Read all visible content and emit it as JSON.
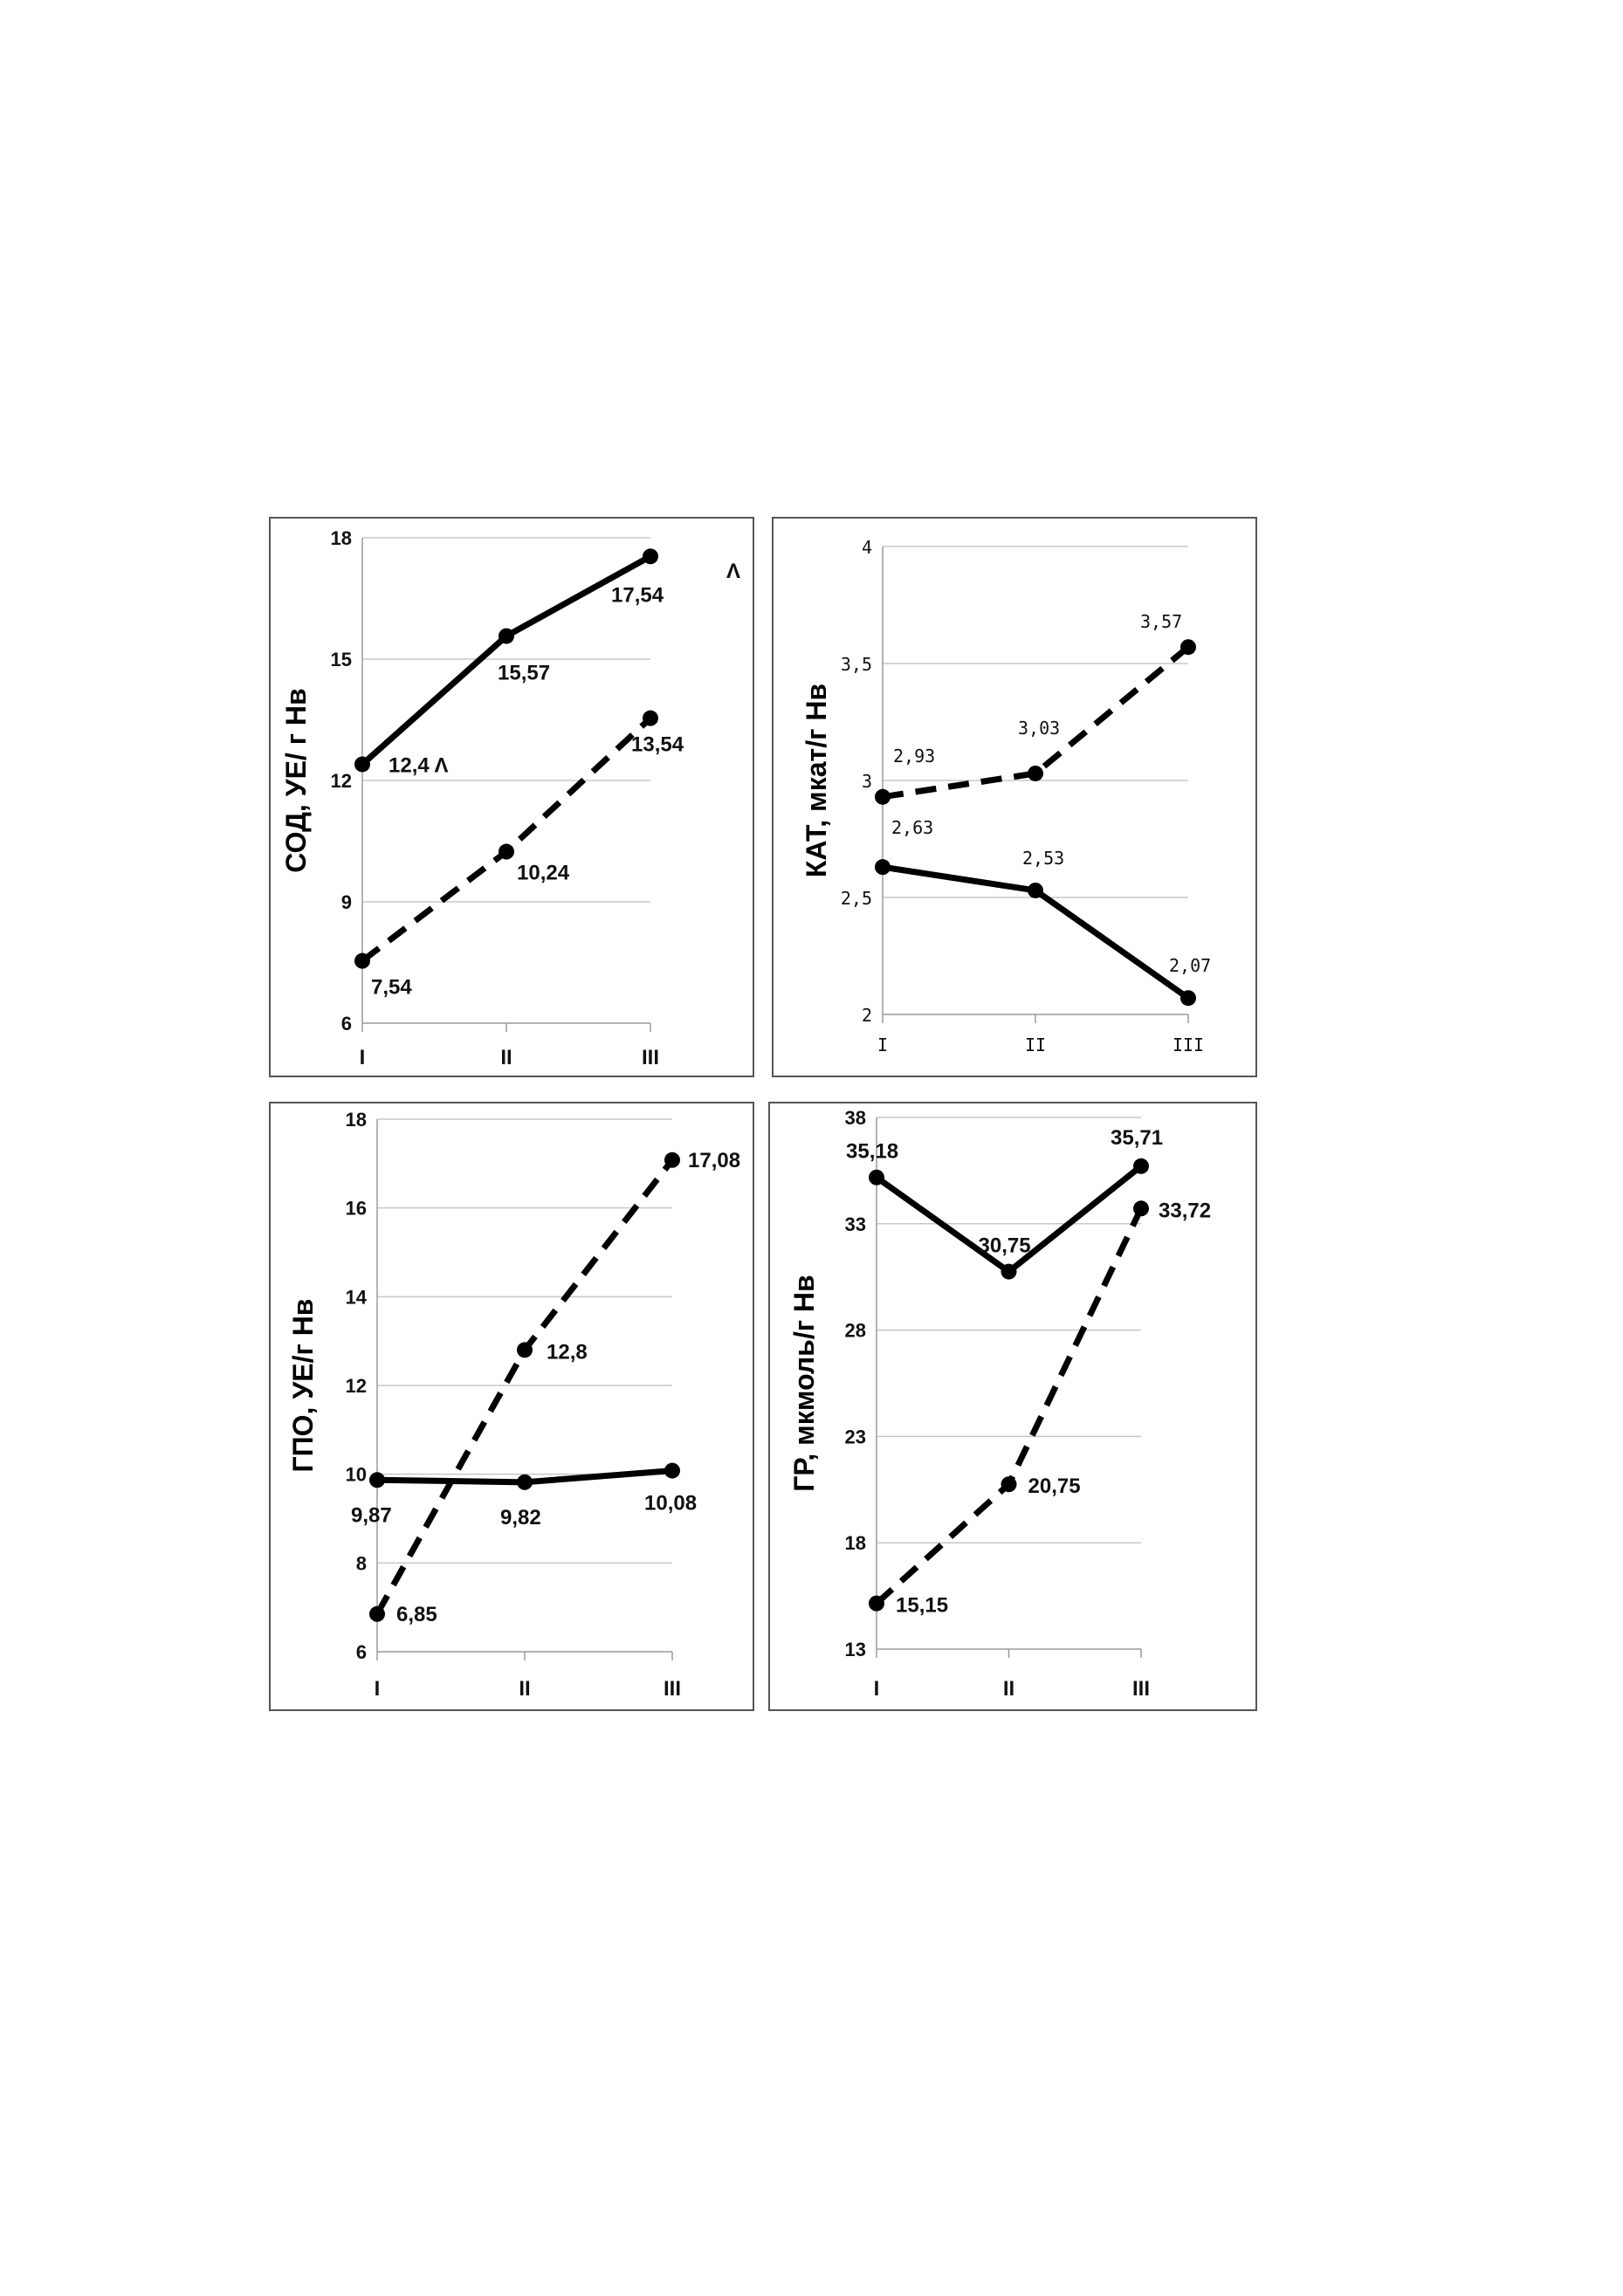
{
  "chart_data": [
    {
      "type": "line",
      "ylabel": "СОД, УЕ/ г Нв",
      "categories": [
        "I",
        "II",
        "III"
      ],
      "yticks": [
        "18",
        "15",
        "12",
        "9",
        "6"
      ],
      "ylim": [
        6,
        18
      ],
      "ytick_values": [
        18,
        15,
        12,
        9,
        6
      ],
      "series": [
        {
          "style": "solid",
          "values": [
            12.4,
            15.57,
            17.54
          ],
          "labels": [
            "12,4 Λ",
            "15,57",
            "17,54"
          ]
        },
        {
          "style": "dashed",
          "values": [
            7.54,
            10.24,
            13.54
          ],
          "labels": [
            "7,54",
            "10,24",
            "13,54"
          ]
        }
      ],
      "annotations": [
        "Λ"
      ]
    },
    {
      "type": "line",
      "ylabel": "КАТ, мкат/г Нв",
      "categories": [
        "I",
        "II",
        "III"
      ],
      "yticks": [
        "4",
        "3,5",
        "3",
        "2,5",
        "2"
      ],
      "ylim": [
        2,
        4
      ],
      "ytick_values": [
        4,
        3.5,
        3,
        2.5,
        2
      ],
      "series": [
        {
          "style": "dashed",
          "values": [
            2.93,
            3.03,
            3.57
          ],
          "labels": [
            "2,93",
            "3,03",
            "3,57"
          ]
        },
        {
          "style": "solid",
          "values": [
            2.63,
            2.53,
            2.07
          ],
          "labels": [
            "2,63",
            "2,53",
            "2,07"
          ]
        }
      ]
    },
    {
      "type": "line",
      "ylabel": "ГПО, УЕ/г Нв",
      "categories": [
        "I",
        "II",
        "III"
      ],
      "yticks": [
        "18",
        "16",
        "14",
        "12",
        "10",
        "8",
        "6"
      ],
      "ylim": [
        6,
        18
      ],
      "ytick_values": [
        18,
        16,
        14,
        12,
        10,
        8,
        6
      ],
      "series": [
        {
          "style": "solid",
          "values": [
            9.87,
            9.82,
            10.08
          ],
          "labels": [
            "9,87",
            "9,82",
            "10,08"
          ]
        },
        {
          "style": "dashed",
          "values": [
            6.85,
            12.8,
            17.08
          ],
          "labels": [
            "6,85",
            "12,8",
            "17,08"
          ]
        }
      ]
    },
    {
      "type": "line",
      "ylabel": "ГР, мкмоль/г Нв",
      "categories": [
        "I",
        "II",
        "III"
      ],
      "yticks": [
        "38",
        "33",
        "28",
        "23",
        "18",
        "13"
      ],
      "ylim": [
        13,
        38
      ],
      "ytick_values": [
        38,
        33,
        28,
        23,
        18,
        13
      ],
      "series": [
        {
          "style": "solid",
          "values": [
            35.18,
            30.75,
            35.71
          ],
          "labels": [
            "35,18",
            "30,75",
            "35,71"
          ]
        },
        {
          "style": "dashed",
          "values": [
            15.15,
            20.75,
            33.72
          ],
          "labels": [
            "15,15",
            "20,75",
            "33,72"
          ]
        }
      ]
    }
  ]
}
